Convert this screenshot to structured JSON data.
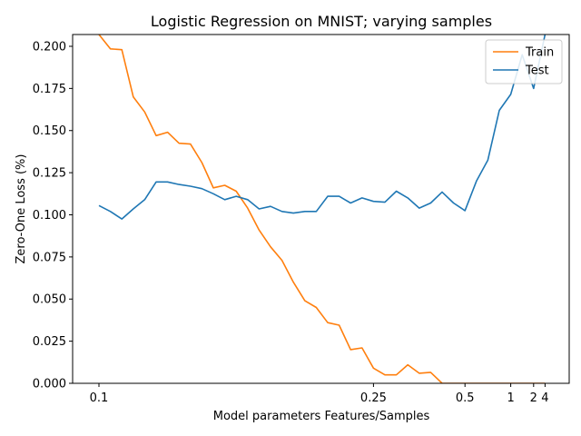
{
  "chart_data": {
    "type": "line",
    "title": "Logistic Regression on MNIST; varying samples",
    "xlabel": "Model parameters Features/Samples",
    "ylabel": "Zero-One Loss (%)",
    "x_scale": "categorical-position",
    "x_ticks": [
      "0.1",
      "0.25",
      "0.5",
      "1",
      "2",
      "4"
    ],
    "x_tick_positions": [
      0,
      24,
      32,
      36,
      38,
      39
    ],
    "ylim": [
      0.0,
      0.207
    ],
    "y_ticks": [
      "0.000",
      "0.025",
      "0.050",
      "0.075",
      "0.100",
      "0.125",
      "0.150",
      "0.175",
      "0.200"
    ],
    "y_tick_values": [
      0.0,
      0.025,
      0.05,
      0.075,
      0.1,
      0.125,
      0.15,
      0.175,
      0.2
    ],
    "legend": {
      "location": "top-right"
    },
    "grid": false,
    "series": [
      {
        "name": "Train",
        "color": "#ff7f0e",
        "values": [
          0.207,
          0.1985,
          0.198,
          0.17,
          0.161,
          0.147,
          0.149,
          0.1425,
          0.142,
          0.131,
          0.116,
          0.1175,
          0.114,
          0.104,
          0.091,
          0.081,
          0.073,
          0.06,
          0.049,
          0.045,
          0.036,
          0.0345,
          0.02,
          0.021,
          0.009,
          0.005,
          0.005,
          0.011,
          0.006,
          0.0065,
          0.0,
          0.0,
          0.0,
          0.0,
          0.0,
          0.0,
          0.0,
          0.0,
          0.0,
          0.0
        ]
      },
      {
        "name": "Test",
        "color": "#1f77b4",
        "values": [
          0.1055,
          0.102,
          0.0975,
          0.1035,
          0.109,
          0.1195,
          0.1195,
          0.118,
          0.117,
          0.1155,
          0.1125,
          0.109,
          0.111,
          0.109,
          0.1035,
          0.105,
          0.102,
          0.101,
          0.102,
          0.102,
          0.111,
          0.111,
          0.107,
          0.11,
          0.108,
          0.1075,
          0.114,
          0.11,
          0.104,
          0.107,
          0.1135,
          0.107,
          0.1025,
          0.12,
          0.1325,
          0.162,
          0.1715,
          0.195,
          0.175,
          0.207
        ]
      }
    ]
  }
}
